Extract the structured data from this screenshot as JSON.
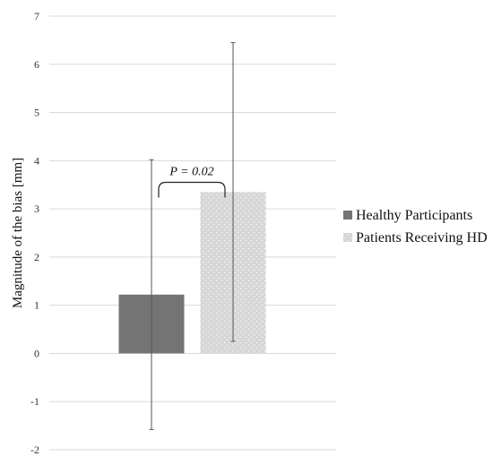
{
  "chart_data": {
    "type": "bar",
    "title": "",
    "xlabel": "",
    "ylabel": "Magnitude of the bias [mm]",
    "ylim": [
      -2,
      7
    ],
    "yticks": [
      -2,
      -1,
      0,
      1,
      2,
      3,
      4,
      5,
      6,
      7
    ],
    "grid": true,
    "legend_position": "right",
    "series": [
      {
        "name": "Healthy Participants",
        "value": 1.22,
        "error_low": -1.58,
        "error_high": 4.02,
        "color": "#6f6f6f",
        "pattern": "solid"
      },
      {
        "name": "Patients Receiving HD",
        "value": 3.35,
        "error_low": 0.25,
        "error_high": 6.45,
        "color": "#d4d4d4",
        "pattern": "dotted"
      }
    ],
    "annotation": {
      "text": "P = 0.02",
      "between": [
        "Healthy Participants",
        "Patients Receiving HD"
      ],
      "bracket_y": 3.55
    }
  }
}
